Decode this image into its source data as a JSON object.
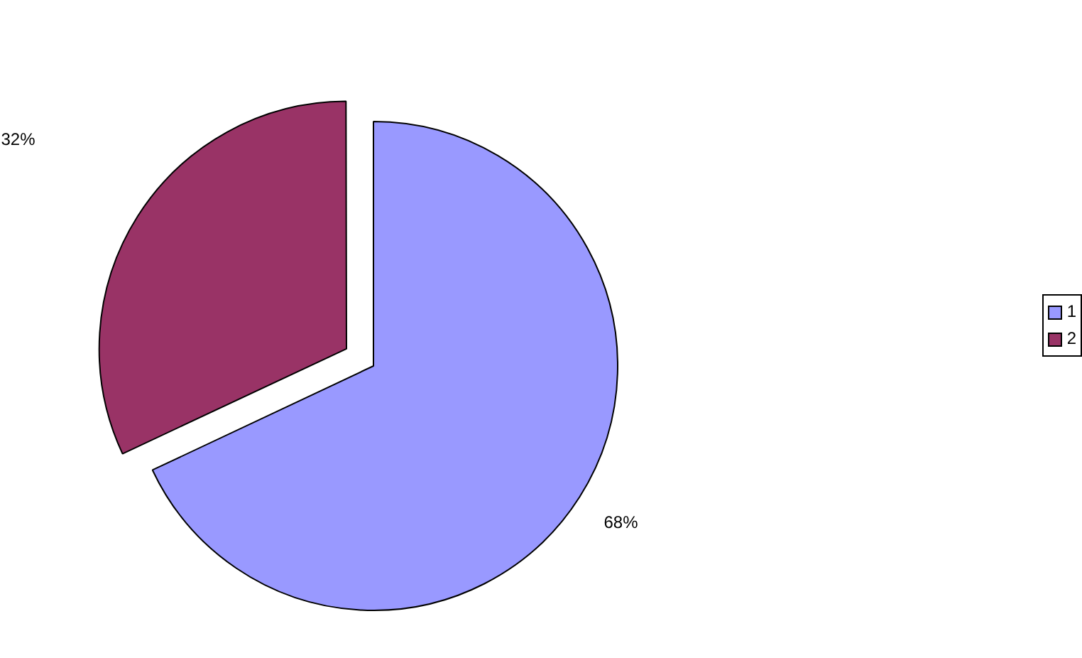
{
  "chart_data": {
    "type": "pie",
    "categories": [
      "1",
      "2"
    ],
    "values": [
      68,
      32
    ],
    "colors": [
      "#9999ff",
      "#993366"
    ],
    "value_labels": [
      "68%",
      "32%"
    ],
    "legend": "right"
  }
}
